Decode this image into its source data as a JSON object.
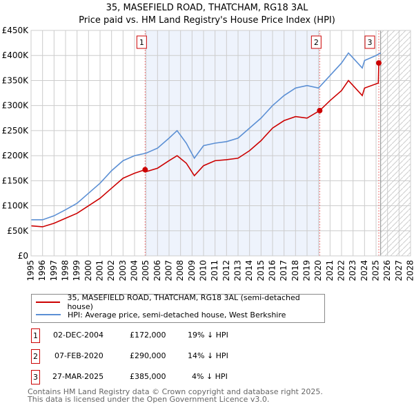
{
  "title_line1": "35, MASEFIELD ROAD, THATCHAM, RG18 3AL",
  "title_line2": "Price paid vs. HM Land Registry's House Price Index (HPI)",
  "chart_data": {
    "type": "line",
    "ylim": [
      0,
      450000
    ],
    "xlim": [
      1995,
      2028
    ],
    "yticks": [
      0,
      50000,
      100000,
      150000,
      200000,
      250000,
      300000,
      350000,
      400000,
      450000
    ],
    "ytick_labels": [
      "£0",
      "£50K",
      "£100K",
      "£150K",
      "£200K",
      "£250K",
      "£300K",
      "£350K",
      "£400K",
      "£450K"
    ],
    "xticks": [
      1995,
      1996,
      1997,
      1998,
      1999,
      2000,
      2001,
      2002,
      2003,
      2004,
      2005,
      2006,
      2007,
      2008,
      2009,
      2010,
      2011,
      2012,
      2013,
      2014,
      2015,
      2016,
      2017,
      2018,
      2019,
      2020,
      2021,
      2022,
      2023,
      2024,
      2025,
      2026,
      2027,
      2028
    ],
    "grid": true,
    "series": [
      {
        "name": "35, MASEFIELD ROAD, THATCHAM, RG18 3AL (semi-detached house)",
        "color": "#cc0000",
        "x": [
          1995,
          1996,
          1997,
          1998,
          1999,
          2000,
          2001,
          2002,
          2003,
          2004,
          2004.92,
          2005,
          2006,
          2007,
          2007.7,
          2008.5,
          2009.2,
          2010,
          2011,
          2012,
          2013,
          2014,
          2015,
          2016,
          2017,
          2018,
          2019,
          2020.1,
          2021,
          2022,
          2022.6,
          2023,
          2023.8,
          2024,
          2025.2,
          2025.24
        ],
        "y": [
          60000,
          58000,
          65000,
          75000,
          85000,
          100000,
          115000,
          135000,
          155000,
          165000,
          172000,
          168000,
          175000,
          190000,
          200000,
          185000,
          160000,
          180000,
          190000,
          192000,
          195000,
          210000,
          230000,
          255000,
          270000,
          278000,
          275000,
          290000,
          310000,
          330000,
          350000,
          340000,
          320000,
          335000,
          345000,
          385000
        ]
      },
      {
        "name": "HPI: Average price, semi-detached house, West Berkshire",
        "color": "#5b8fd4",
        "x": [
          1995,
          1996,
          1997,
          1998,
          1999,
          2000,
          2001,
          2002,
          2003,
          2004,
          2005,
          2006,
          2007,
          2007.7,
          2008.5,
          2009.2,
          2010,
          2011,
          2012,
          2013,
          2014,
          2015,
          2016,
          2017,
          2018,
          2019,
          2020,
          2021,
          2022,
          2022.6,
          2023,
          2023.8,
          2024,
          2025,
          2025.4
        ],
        "y": [
          72000,
          72000,
          80000,
          92000,
          105000,
          125000,
          145000,
          170000,
          190000,
          200000,
          205000,
          215000,
          235000,
          250000,
          225000,
          195000,
          220000,
          225000,
          228000,
          235000,
          255000,
          275000,
          300000,
          320000,
          335000,
          340000,
          335000,
          360000,
          385000,
          405000,
          395000,
          375000,
          390000,
          400000,
          405000
        ]
      }
    ],
    "sales": [
      {
        "label": "1",
        "x": 2004.92,
        "y": 172000,
        "date": "02-DEC-2004",
        "price": "£172,000",
        "hpi": "19% ↓ HPI"
      },
      {
        "label": "2",
        "x": 2020.1,
        "y": 290000,
        "date": "07-FEB-2020",
        "price": "£290,000",
        "hpi": "14% ↓ HPI"
      },
      {
        "label": "3",
        "x": 2025.24,
        "y": 385000,
        "date": "27-MAR-2025",
        "price": "£385,000",
        "hpi": "4% ↓ HPI"
      }
    ],
    "forecast_start": 2025.4
  },
  "footer1": "Contains HM Land Registry data © Crown copyright and database right 2025.",
  "footer2": "This data is licensed under the Open Government Licence v3.0."
}
